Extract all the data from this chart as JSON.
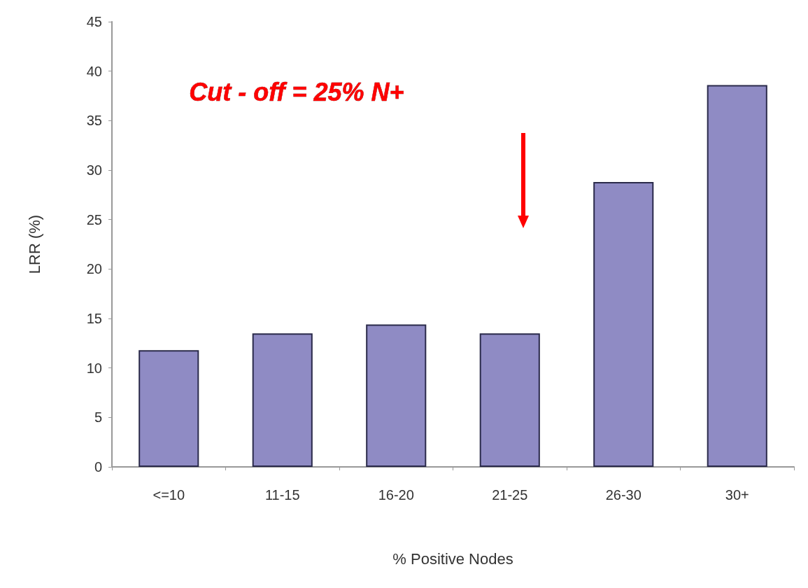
{
  "chart_data": {
    "type": "bar",
    "xlabel": "% Positive Nodes",
    "ylabel": "LRR (%)",
    "categories": [
      "<=10",
      "11-15",
      "16-20",
      "21-25",
      "26-30",
      "30+"
    ],
    "values": [
      11.8,
      13.5,
      14.4,
      13.5,
      28.8,
      38.6
    ],
    "color": "#8f8bc4",
    "ylim": [
      0,
      45
    ],
    "yticks": [
      0,
      5,
      10,
      15,
      20,
      25,
      30,
      35,
      40,
      45
    ],
    "grid": false,
    "annotations": [
      "Cut - off = 25% N+"
    ]
  }
}
